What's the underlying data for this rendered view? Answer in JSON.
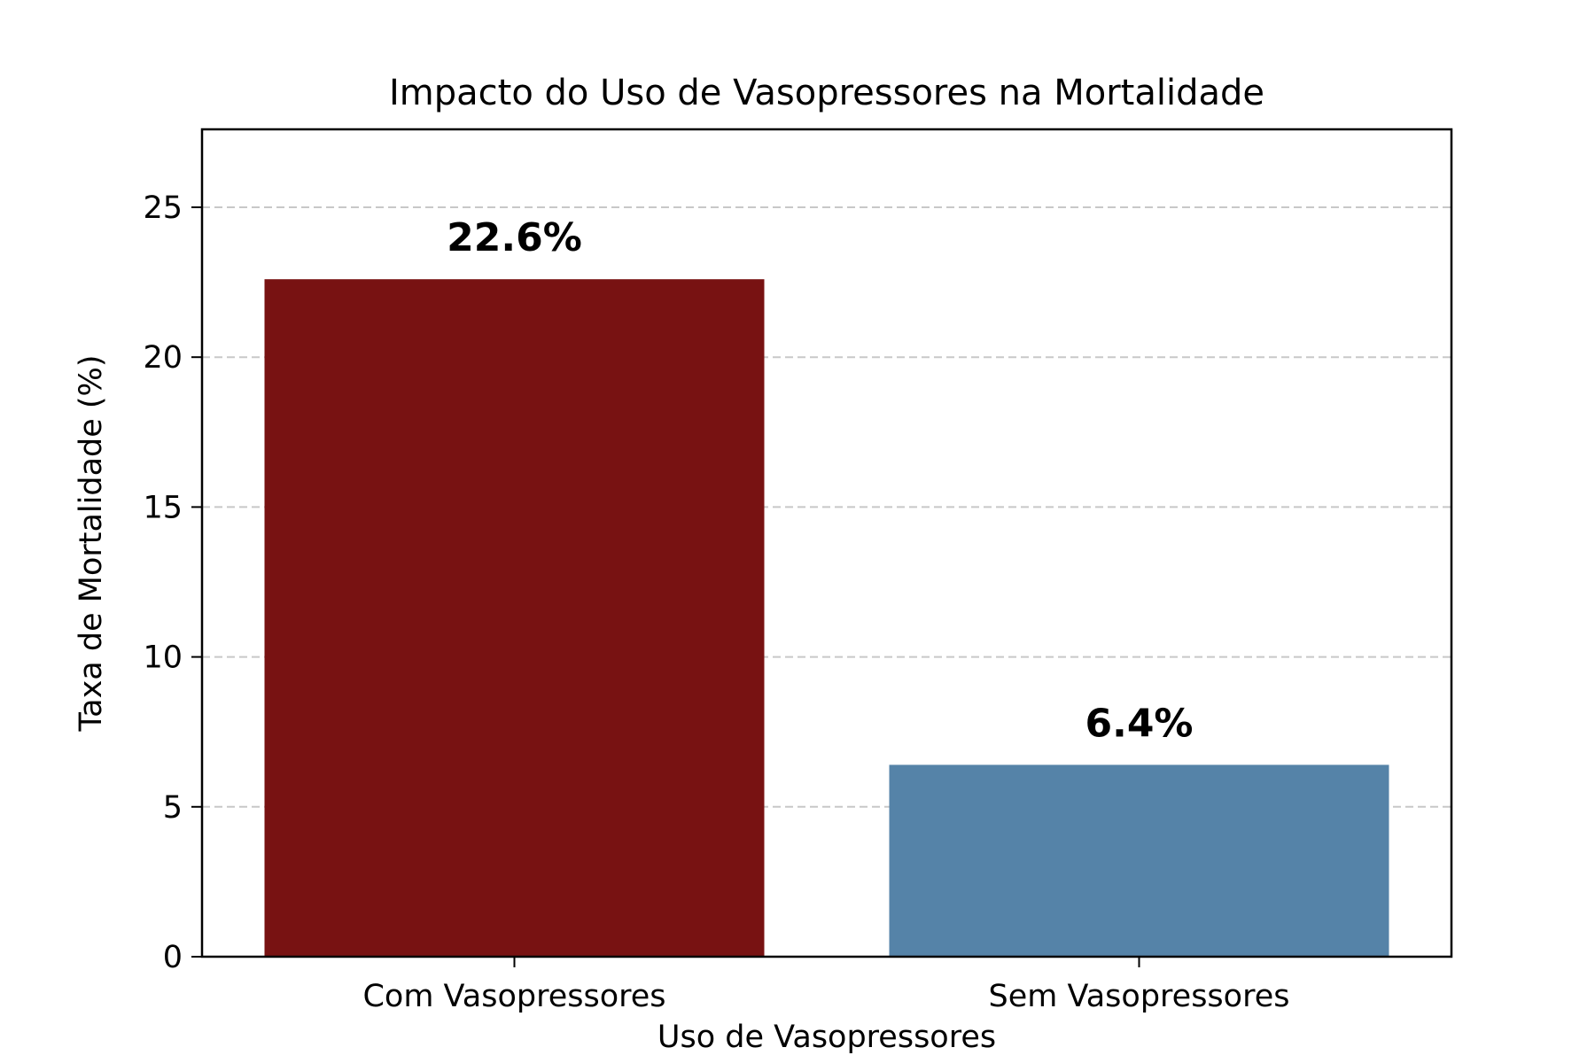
{
  "chart_data": {
    "type": "bar",
    "title": "Impacto do Uso de Vasopressores na Mortalidade",
    "xlabel": "Uso de Vasopressores",
    "ylabel": "Taxa de Mortalidade (%)",
    "categories": [
      "Com Vasopressores",
      "Sem Vasopressores"
    ],
    "values": [
      22.6,
      6.4
    ],
    "value_labels": [
      "22.6%",
      "6.4%"
    ],
    "colors": [
      "#781212",
      "#5583a8"
    ],
    "ylim": [
      0,
      27.6
    ],
    "yticks": [
      0,
      5,
      10,
      15,
      20,
      25
    ],
    "ytick_labels": [
      "0",
      "5",
      "10",
      "15",
      "20",
      "25"
    ],
    "grid": "y-dashed",
    "legend": "none"
  }
}
